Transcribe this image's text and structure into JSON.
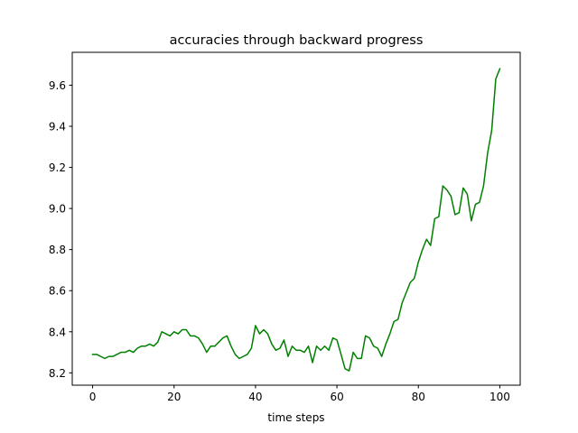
{
  "chart_data": {
    "type": "line",
    "title": "accuracies through backward progress",
    "xlabel": "time steps",
    "ylabel": "",
    "xlim": [
      -5,
      105
    ],
    "ylim": [
      8.14,
      9.76
    ],
    "xticks": [
      0,
      20,
      40,
      60,
      80,
      100
    ],
    "yticks": [
      8.2,
      8.4,
      8.6,
      8.8,
      9.0,
      9.2,
      9.4,
      9.6
    ],
    "ytick_labels": [
      "8.2",
      "8.4",
      "8.6",
      "8.8",
      "9.0",
      "9.2",
      "9.4",
      "9.6"
    ],
    "grid": false,
    "legend": "none",
    "series": [
      {
        "color": "#008000",
        "x": [
          0,
          1,
          2,
          3,
          4,
          5,
          6,
          7,
          8,
          9,
          10,
          11,
          12,
          13,
          14,
          15,
          16,
          17,
          18,
          19,
          20,
          21,
          22,
          23,
          24,
          25,
          26,
          27,
          28,
          29,
          30,
          31,
          32,
          33,
          34,
          35,
          36,
          37,
          38,
          39,
          40,
          41,
          42,
          43,
          44,
          45,
          46,
          47,
          48,
          49,
          50,
          51,
          52,
          53,
          54,
          55,
          56,
          57,
          58,
          59,
          60,
          61,
          62,
          63,
          64,
          65,
          66,
          67,
          68,
          69,
          70,
          71,
          72,
          73,
          74,
          75,
          76,
          77,
          78,
          79,
          80,
          81,
          82,
          83,
          84,
          85,
          86,
          87,
          88,
          89,
          90,
          91,
          92,
          93,
          94,
          95,
          96,
          97,
          98,
          99,
          100
        ],
        "values": [
          8.29,
          8.29,
          8.28,
          8.27,
          8.28,
          8.28,
          8.29,
          8.3,
          8.3,
          8.31,
          8.3,
          8.32,
          8.33,
          8.33,
          8.34,
          8.33,
          8.35,
          8.4,
          8.39,
          8.38,
          8.4,
          8.39,
          8.41,
          8.41,
          8.38,
          8.38,
          8.37,
          8.34,
          8.3,
          8.33,
          8.33,
          8.35,
          8.37,
          8.38,
          8.33,
          8.29,
          8.27,
          8.28,
          8.29,
          8.32,
          8.43,
          8.39,
          8.41,
          8.39,
          8.34,
          8.31,
          8.32,
          8.36,
          8.28,
          8.33,
          8.31,
          8.31,
          8.3,
          8.33,
          8.25,
          8.33,
          8.31,
          8.33,
          8.31,
          8.37,
          8.36,
          8.29,
          8.22,
          8.21,
          8.3,
          8.27,
          8.27,
          8.38,
          8.37,
          8.33,
          8.32,
          8.28,
          8.34,
          8.39,
          8.45,
          8.46,
          8.54,
          8.59,
          8.64,
          8.66,
          8.74,
          8.8,
          8.85,
          8.82,
          8.95,
          8.96,
          9.11,
          9.09,
          9.06,
          8.97,
          8.98,
          9.1,
          9.07,
          8.94,
          9.02,
          9.03,
          9.11,
          9.27,
          9.38,
          9.63,
          9.68
        ]
      }
    ]
  }
}
